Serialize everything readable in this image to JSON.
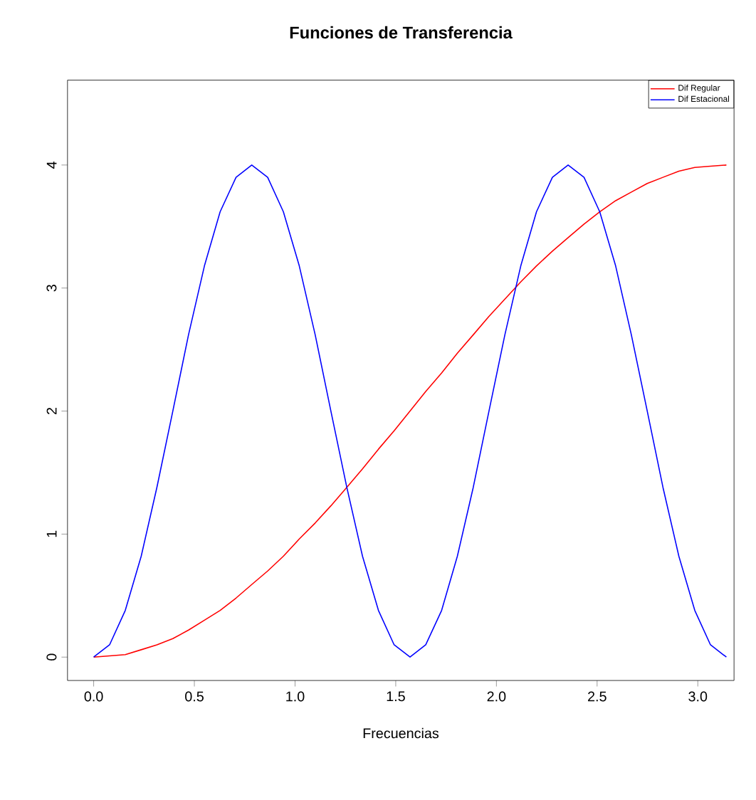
{
  "chart_data": {
    "type": "line",
    "title": "Funciones de Transferencia",
    "xlabel": "Frecuencias",
    "xlim": [
      -0.13,
      3.18
    ],
    "ylim": [
      -0.19,
      4.69
    ],
    "xticks": [
      {
        "value": 0,
        "label": "0.0"
      },
      {
        "value": 0.5,
        "label": "0.5"
      },
      {
        "value": 1,
        "label": "1.0"
      },
      {
        "value": 1.5,
        "label": "1.5"
      },
      {
        "value": 2,
        "label": "2.0"
      },
      {
        "value": 2.5,
        "label": "2.5"
      },
      {
        "value": 3,
        "label": "3.0"
      }
    ],
    "yticks": [
      0,
      1,
      2,
      3,
      4
    ],
    "legend": "top right",
    "grid": false,
    "marker": "none",
    "line_style": "solid",
    "x": [
      0,
      0.079,
      0.157,
      0.236,
      0.314,
      0.393,
      0.471,
      0.55,
      0.628,
      0.707,
      0.785,
      0.864,
      0.942,
      1.021,
      1.1,
      1.178,
      1.257,
      1.335,
      1.414,
      1.492,
      1.571,
      1.649,
      1.728,
      1.806,
      1.885,
      1.963,
      2.042,
      2.121,
      2.199,
      2.278,
      2.356,
      2.435,
      2.513,
      2.592,
      2.67,
      2.749,
      2.827,
      2.906,
      2.985,
      3.063,
      3.142
    ],
    "series": [
      {
        "name": "Dif Regular",
        "color": "#ff0000",
        "values": [
          0,
          0.01,
          0.02,
          0.06,
          0.1,
          0.15,
          0.22,
          0.3,
          0.38,
          0.48,
          0.59,
          0.7,
          0.82,
          0.96,
          1.09,
          1.23,
          1.38,
          1.53,
          1.69,
          1.84,
          2,
          2.16,
          2.31,
          2.47,
          2.62,
          2.77,
          2.91,
          3.05,
          3.18,
          3.3,
          3.41,
          3.52,
          3.62,
          3.71,
          3.78,
          3.85,
          3.9,
          3.95,
          3.98,
          3.99,
          4
        ]
      },
      {
        "name": "Dif Estacional",
        "color": "#0000ff",
        "values": [
          0,
          0.1,
          0.38,
          0.82,
          1.38,
          2,
          2.62,
          3.18,
          3.62,
          3.9,
          4,
          3.9,
          3.62,
          3.18,
          2.62,
          2,
          1.38,
          0.82,
          0.38,
          0.1,
          0,
          0.1,
          0.38,
          0.82,
          1.38,
          2,
          2.62,
          3.18,
          3.62,
          3.9,
          4,
          3.9,
          3.62,
          3.18,
          2.62,
          2,
          1.38,
          0.82,
          0.38,
          0.1,
          0
        ]
      }
    ]
  }
}
